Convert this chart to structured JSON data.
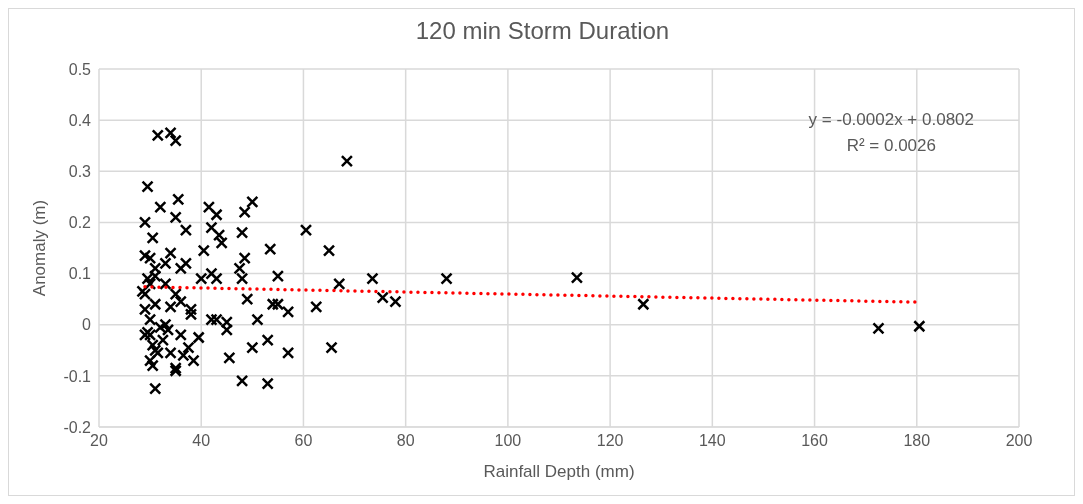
{
  "chart_data": {
    "type": "scatter",
    "title": "120 min Storm Duration",
    "xlabel": "Rainfall Depth (mm)",
    "ylabel": "Anomaly (m)",
    "annotations": [
      "y = -0.0002x + 0.0802",
      "R² = 0.0026"
    ],
    "xlim": [
      20,
      200
    ],
    "xticks": [
      20,
      40,
      60,
      80,
      100,
      120,
      140,
      160,
      180,
      200
    ],
    "ylim": [
      -0.2,
      0.5
    ],
    "yticks": [
      -0.2,
      -0.1,
      0,
      0.1,
      0.2,
      0.3,
      0.4,
      0.5
    ],
    "grid": true,
    "series": [
      {
        "type": "scatter",
        "marker": "cross",
        "color": "#000000",
        "x": [
          31.5,
          34,
          35,
          29.5,
          68.5,
          29,
          32,
          35,
          35.5,
          37,
          30.5,
          41.5,
          43,
          42,
          43.5,
          44,
          48.5,
          48,
          50,
          60.5,
          48.5,
          65,
          53.5,
          40.5,
          29,
          30,
          31,
          33,
          34,
          36,
          37,
          40,
          42,
          43,
          47.5,
          48,
          55,
          28.5,
          29.5,
          30,
          31,
          33,
          35,
          36,
          38,
          38,
          34,
          42,
          43,
          54,
          55,
          57,
          62.5,
          67,
          73.5,
          75.5,
          78,
          88,
          113.5,
          126.5,
          172.5,
          180.5,
          29,
          29.5,
          30,
          30.5,
          31,
          30,
          30.5,
          31,
          32,
          33,
          33.5,
          34,
          35,
          35,
          36,
          36.5,
          37.5,
          38.5,
          39.5,
          45,
          45,
          45.5,
          48,
          49,
          50,
          51,
          53,
          53,
          57,
          65.5,
          29,
          31,
          32.5,
          30,
          31.5,
          29
        ],
        "values": [
          0.37,
          0.375,
          0.36,
          0.27,
          0.32,
          0.2,
          0.23,
          0.21,
          0.245,
          0.185,
          0.17,
          0.23,
          0.215,
          0.19,
          0.175,
          0.16,
          0.22,
          0.18,
          0.24,
          0.185,
          0.13,
          0.145,
          0.148,
          0.145,
          0.135,
          0.13,
          0.11,
          0.12,
          0.14,
          0.11,
          0.12,
          0.09,
          0.1,
          0.09,
          0.11,
          0.09,
          0.095,
          0.065,
          0.09,
          0.08,
          0.095,
          0.08,
          0.06,
          0.045,
          0.03,
          0.02,
          0.035,
          0.01,
          0.01,
          0.04,
          0.04,
          0.025,
          0.035,
          0.08,
          0.09,
          0.053,
          0.045,
          0.09,
          0.092,
          0.04,
          -0.007,
          -0.003,
          0.03,
          -0.015,
          -0.02,
          -0.04,
          -0.05,
          -0.07,
          -0.08,
          -0.125,
          -0.005,
          0,
          -0.01,
          -0.055,
          -0.085,
          -0.09,
          -0.02,
          -0.06,
          -0.045,
          -0.07,
          -0.025,
          -0.01,
          0.005,
          -0.065,
          -0.11,
          0.05,
          -0.045,
          0.01,
          -0.03,
          -0.115,
          -0.055,
          -0.045,
          0.06,
          0.04,
          -0.03,
          0.01,
          -0.055,
          -0.02
        ]
      },
      {
        "type": "line",
        "marker": "none",
        "line_style": "dotted",
        "color": "#ff0000",
        "x": [
          29,
          180.5
        ],
        "values": [
          0.074,
          0.044
        ]
      }
    ]
  }
}
